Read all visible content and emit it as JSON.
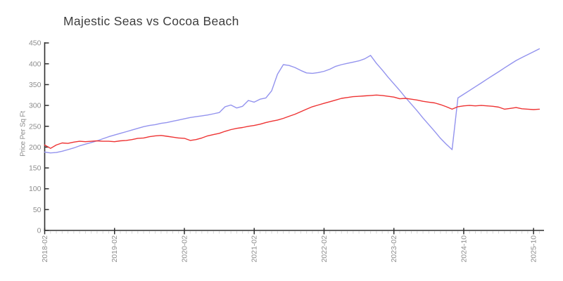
{
  "chart_data": {
    "type": "line",
    "title": "Majestic Seas vs Cocoa Beach",
    "xlabel": "",
    "ylabel": "Price Per Sq Ft",
    "ylim": [
      0,
      450
    ],
    "y_ticks": [
      0,
      50,
      100,
      150,
      200,
      250,
      300,
      350,
      400,
      450
    ],
    "grid": false,
    "legend_position": "none",
    "x_major_ticks": [
      {
        "index": 0,
        "label": "2018-02"
      },
      {
        "index": 12,
        "label": "2019-02"
      },
      {
        "index": 24,
        "label": "2020-02"
      },
      {
        "index": 36,
        "label": "2021-02"
      },
      {
        "index": 48,
        "label": "2022-02"
      },
      {
        "index": 60,
        "label": "2023-02"
      },
      {
        "index": 72,
        "label": "2024-10"
      },
      {
        "index": 84,
        "label": "2025-10"
      }
    ],
    "colors": {
      "axis": "#2e2e2e",
      "tick_label": "#8d8d8d",
      "minor_tick": "#d4d4d4",
      "title_text": "#3d3d3d"
    },
    "series": [
      {
        "name": "Majestic Seas",
        "color": "#9393ee",
        "values": [
          188,
          186,
          187,
          190,
          194,
          198,
          203,
          207,
          211,
          215,
          220,
          225,
          229,
          233,
          237,
          241,
          245,
          249,
          252,
          254,
          257,
          259,
          262,
          265,
          268,
          271,
          273,
          275,
          277,
          280,
          283,
          297,
          301,
          294,
          298,
          312,
          308,
          315,
          318,
          335,
          375,
          398,
          396,
          391,
          384,
          378,
          377,
          379,
          382,
          387,
          394,
          398,
          401,
          404,
          407,
          412,
          420,
          401,
          385,
          368,
          352,
          336,
          319,
          303,
          287,
          270,
          254,
          238,
          221,
          207,
          194,
          318,
          327,
          336,
          345,
          354,
          363,
          372,
          381,
          390,
          399,
          408,
          415,
          422,
          429,
          436
        ]
      },
      {
        "name": "Cocoa Beach",
        "color": "#ee3333",
        "values": [
          205,
          197,
          205,
          210,
          209,
          212,
          214,
          213,
          214,
          215,
          214,
          214,
          213,
          215,
          216,
          218,
          221,
          222,
          225,
          227,
          228,
          226,
          224,
          222,
          221,
          216,
          218,
          222,
          227,
          230,
          233,
          238,
          242,
          245,
          247,
          250,
          252,
          255,
          259,
          262,
          265,
          269,
          274,
          279,
          285,
          291,
          297,
          301,
          305,
          309,
          313,
          317,
          319,
          321,
          322,
          323,
          324,
          325,
          324,
          322,
          320,
          316,
          317,
          315,
          313,
          310,
          308,
          306,
          302,
          297,
          291,
          297,
          299,
          300,
          299,
          300,
          299,
          298,
          296,
          291,
          293,
          295,
          292,
          291,
          290,
          291
        ]
      }
    ]
  }
}
